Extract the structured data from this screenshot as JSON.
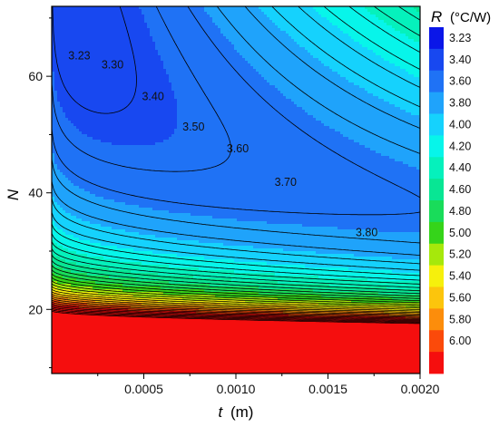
{
  "chart_data": {
    "type": "contour",
    "xlabel_var": "t",
    "xlabel_unit": "(m)",
    "ylabel_var": "N",
    "xlim": [
      0,
      0.002
    ],
    "ylim": [
      9,
      72
    ],
    "x_ticks": [
      {
        "value": 0.0005,
        "label": "0.0005"
      },
      {
        "value": 0.001,
        "label": "0.0010"
      },
      {
        "value": 0.0015,
        "label": "0.0015"
      },
      {
        "value": 0.002,
        "label": "0.0020"
      }
    ],
    "y_ticks": [
      {
        "value": 20,
        "label": "20"
      },
      {
        "value": 40,
        "label": "40"
      },
      {
        "value": 60,
        "label": "60"
      }
    ],
    "colorbar": {
      "title_var": "R",
      "title_unit": "(°C/W)",
      "levels": [
        3.23,
        3.4,
        3.6,
        3.8,
        4.0,
        4.2,
        4.4,
        4.6,
        4.8,
        5.0,
        5.2,
        5.4,
        5.6,
        5.8,
        6.0
      ],
      "labels": [
        "3.23",
        "3.40",
        "3.60",
        "3.80",
        "4.00",
        "4.20",
        "4.40",
        "4.60",
        "4.80",
        "5.00",
        "5.20",
        "5.40",
        "5.60",
        "5.80",
        "6.00"
      ],
      "colors": [
        "#0a16e8",
        "#1848f0",
        "#1f72f5",
        "#1fa3fb",
        "#15d2fd",
        "#07f5ea",
        "#05f1bc",
        "#08e694",
        "#19dc5a",
        "#35d41a",
        "#a6e80b",
        "#f6f00c",
        "#fcc50c",
        "#fc8d0b",
        "#fb4a0a",
        "#f50e0e"
      ]
    },
    "contour_labels": [
      {
        "text": "3.23",
        "x": 0.00015,
        "y": 63.5
      },
      {
        "text": "3.30",
        "x": 0.00033,
        "y": 62.0
      },
      {
        "text": "3.40",
        "x": 0.00055,
        "y": 56.5
      },
      {
        "text": "3.50",
        "x": 0.00077,
        "y": 51.3
      },
      {
        "text": "3.60",
        "x": 0.00101,
        "y": 47.6
      },
      {
        "text": "3.70",
        "x": 0.00127,
        "y": 41.8
      },
      {
        "text": "3.80",
        "x": 0.00171,
        "y": 33.2
      }
    ],
    "model_note_free": true
  }
}
